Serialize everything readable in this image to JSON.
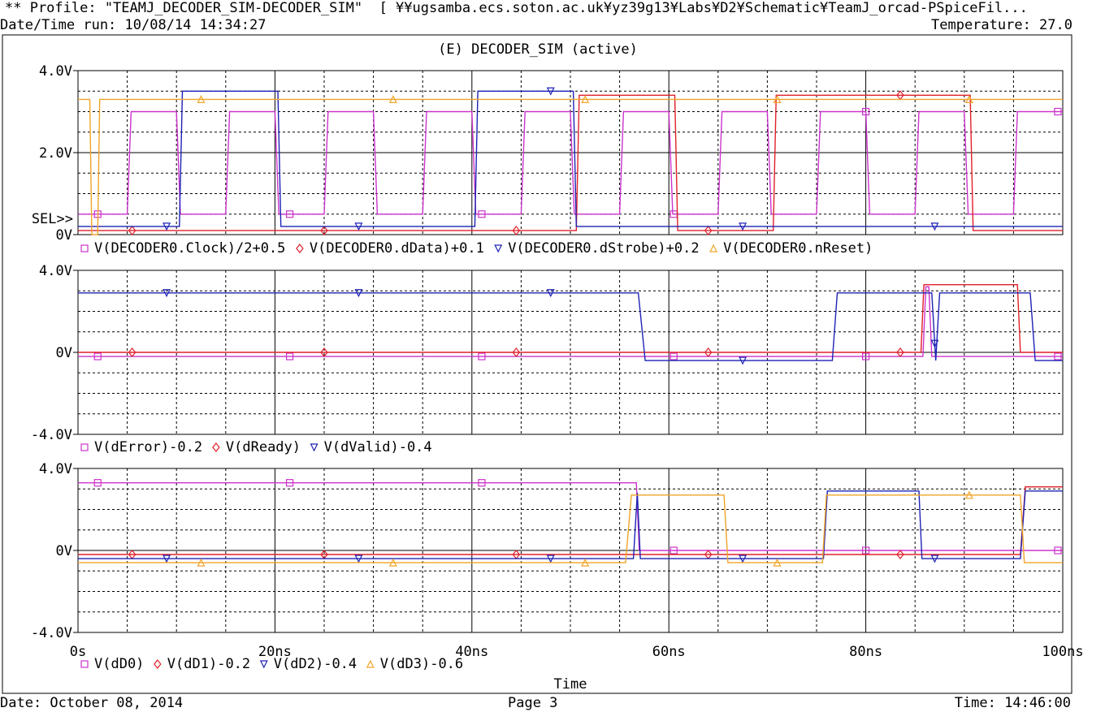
{
  "header": {
    "profile": "** Profile: \"TEAMJ_DECODER_SIM-DECODER_SIM\"  [ ¥¥ugsamba.ecs.soton.ac.uk¥yz39g13¥Labs¥D2¥Schematic¥TeamJ_orcad-PSpiceFil...",
    "datetime_run": "Date/Time run: 10/08/14 14:34:27",
    "temperature": "Temperature: 27.0"
  },
  "footer": {
    "date": "Date: October 08, 2014",
    "page": "Page 3",
    "time": "Time: 14:46:00"
  },
  "colors": {
    "magenta": "#cc33cc",
    "red": "#e0202a",
    "blue": "#1e22b4",
    "orange": "#f0a428"
  },
  "chart_data": {
    "type": "line",
    "title": "(E) DECODER_SIM (active)",
    "xlabel": "Time",
    "x_ticks": [
      "0s",
      "20ns",
      "40ns",
      "60ns",
      "80ns",
      "100ns"
    ],
    "xlim": [
      0,
      100
    ],
    "sel_marker": "SEL>>",
    "plots": [
      {
        "ylim": [
          0,
          4
        ],
        "y_ticks": [
          {
            "v": 4,
            "label": "4.0V"
          },
          {
            "v": 2,
            "label": "2.0V"
          },
          {
            "v": 0,
            "label": "0V"
          }
        ],
        "series": [
          {
            "name": "V(DECODER0.Clock)/2+0.5",
            "color": "magenta",
            "marker": "square",
            "points": [
              [
                0,
                0.5
              ],
              [
                5,
                0.5
              ],
              [
                5.4,
                3
              ],
              [
                10,
                3
              ],
              [
                10.4,
                0.5
              ],
              [
                15,
                0.5
              ],
              [
                15.4,
                3
              ],
              [
                20,
                3
              ],
              [
                20.4,
                0.5
              ],
              [
                25,
                0.5
              ],
              [
                25.4,
                3
              ],
              [
                30,
                3
              ],
              [
                30.4,
                0.5
              ],
              [
                35,
                0.5
              ],
              [
                35.4,
                3
              ],
              [
                40,
                3
              ],
              [
                40.4,
                0.5
              ],
              [
                45,
                0.5
              ],
              [
                45.4,
                3
              ],
              [
                50,
                3
              ],
              [
                50.4,
                0.5
              ],
              [
                55,
                0.5
              ],
              [
                55.4,
                3
              ],
              [
                60,
                3
              ],
              [
                60.4,
                0.5
              ],
              [
                65,
                0.5
              ],
              [
                65.4,
                3
              ],
              [
                70,
                3
              ],
              [
                70.4,
                0.5
              ],
              [
                75,
                0.5
              ],
              [
                75.4,
                3
              ],
              [
                80,
                3
              ],
              [
                80.4,
                0.5
              ],
              [
                85,
                0.5
              ],
              [
                85.4,
                3
              ],
              [
                90,
                3
              ],
              [
                90.4,
                0.5
              ],
              [
                95,
                0.5
              ],
              [
                95.4,
                3
              ],
              [
                100,
                3
              ]
            ]
          },
          {
            "name": "V(DECODER0.dData)+0.1",
            "color": "red",
            "marker": "diamond",
            "points": [
              [
                0,
                0.1
              ],
              [
                50.6,
                0.1
              ],
              [
                50.9,
                3.4
              ],
              [
                60.6,
                3.4
              ],
              [
                60.9,
                0.1
              ],
              [
                70.6,
                0.1
              ],
              [
                70.9,
                3.4
              ],
              [
                90.6,
                3.4
              ],
              [
                90.9,
                0.1
              ],
              [
                100,
                0.1
              ]
            ]
          },
          {
            "name": "V(DECODER0.dStrobe)+0.2",
            "color": "blue",
            "marker": "triangle",
            "points": [
              [
                0,
                0.2
              ],
              [
                10.3,
                0.2
              ],
              [
                10.6,
                3.5
              ],
              [
                20.3,
                3.5
              ],
              [
                20.6,
                0.2
              ],
              [
                40.3,
                0.2
              ],
              [
                40.6,
                3.5
              ],
              [
                50.3,
                3.5
              ],
              [
                50.6,
                0.2
              ],
              [
                100,
                0.2
              ]
            ]
          },
          {
            "name": "V(DECODER0.nReset)",
            "color": "orange",
            "marker": "triangle-up",
            "points": [
              [
                0,
                3.3
              ],
              [
                1.2,
                3.3
              ],
              [
                1.4,
                0
              ],
              [
                2,
                0
              ],
              [
                2.2,
                3.3
              ],
              [
                100,
                3.3
              ]
            ]
          }
        ]
      },
      {
        "ylim": [
          -4,
          4
        ],
        "y_ticks": [
          {
            "v": 4,
            "label": "4.0V"
          },
          {
            "v": 0,
            "label": "0V"
          },
          {
            "v": -4,
            "label": "-4.0V"
          }
        ],
        "series": [
          {
            "name": "V(dError)-0.2",
            "color": "magenta",
            "marker": "square",
            "points": [
              [
                0,
                -0.2
              ],
              [
                85.8,
                -0.2
              ],
              [
                86.1,
                3.2
              ],
              [
                86.4,
                3.2
              ],
              [
                86.7,
                -0.2
              ],
              [
                100,
                -0.2
              ]
            ]
          },
          {
            "name": "V(dReady)",
            "color": "red",
            "marker": "diamond",
            "points": [
              [
                0,
                0
              ],
              [
                85.6,
                0
              ],
              [
                85.9,
                3.3
              ],
              [
                95.4,
                3.3
              ],
              [
                95.7,
                0
              ],
              [
                100,
                0
              ]
            ]
          },
          {
            "name": "V(dValid)-0.4",
            "color": "blue",
            "marker": "triangle",
            "points": [
              [
                0,
                2.9
              ],
              [
                56.9,
                2.9
              ],
              [
                57.6,
                -0.4
              ],
              [
                76.6,
                -0.4
              ],
              [
                77.1,
                2.9
              ],
              [
                86.7,
                2.9
              ],
              [
                87.1,
                -0.4
              ],
              [
                87.5,
                2.9
              ],
              [
                96.7,
                2.9
              ],
              [
                97.2,
                -0.4
              ],
              [
                100,
                -0.4
              ]
            ]
          }
        ]
      },
      {
        "ylim": [
          -4,
          4
        ],
        "y_ticks": [
          {
            "v": 4,
            "label": "4.0V"
          },
          {
            "v": 0,
            "label": "0V"
          },
          {
            "v": -4,
            "label": "-4.0V"
          }
        ],
        "series": [
          {
            "name": "V(dD0)",
            "color": "magenta",
            "marker": "square",
            "points": [
              [
                0,
                3.3
              ],
              [
                56.7,
                3.3
              ],
              [
                57,
                0
              ],
              [
                100,
                0
              ]
            ]
          },
          {
            "name": "V(dD1)-0.2",
            "color": "red",
            "marker": "diamond",
            "points": [
              [
                0,
                -0.2
              ],
              [
                95.7,
                -0.2
              ],
              [
                96.2,
                3.1
              ],
              [
                100,
                3.1
              ]
            ]
          },
          {
            "name": "V(dD2)-0.4",
            "color": "blue",
            "marker": "triangle",
            "points": [
              [
                0,
                -0.4
              ],
              [
                56.4,
                -0.4
              ],
              [
                56.8,
                2.8
              ],
              [
                57.1,
                -0.4
              ],
              [
                75.7,
                -0.4
              ],
              [
                76.1,
                2.9
              ],
              [
                85.4,
                2.9
              ],
              [
                85.7,
                -0.4
              ],
              [
                95.7,
                -0.4
              ],
              [
                96.2,
                2.9
              ],
              [
                100,
                2.9
              ]
            ]
          },
          {
            "name": "V(dD3)-0.6",
            "color": "orange",
            "marker": "triangle-up",
            "points": [
              [
                0,
                -0.6
              ],
              [
                55.6,
                -0.6
              ],
              [
                56.2,
                2.7
              ],
              [
                65.6,
                2.7
              ],
              [
                66,
                -0.6
              ],
              [
                75.6,
                -0.6
              ],
              [
                76,
                2.7
              ],
              [
                95.7,
                2.7
              ],
              [
                96.1,
                -0.6
              ],
              [
                100,
                -0.6
              ]
            ]
          }
        ]
      }
    ]
  }
}
